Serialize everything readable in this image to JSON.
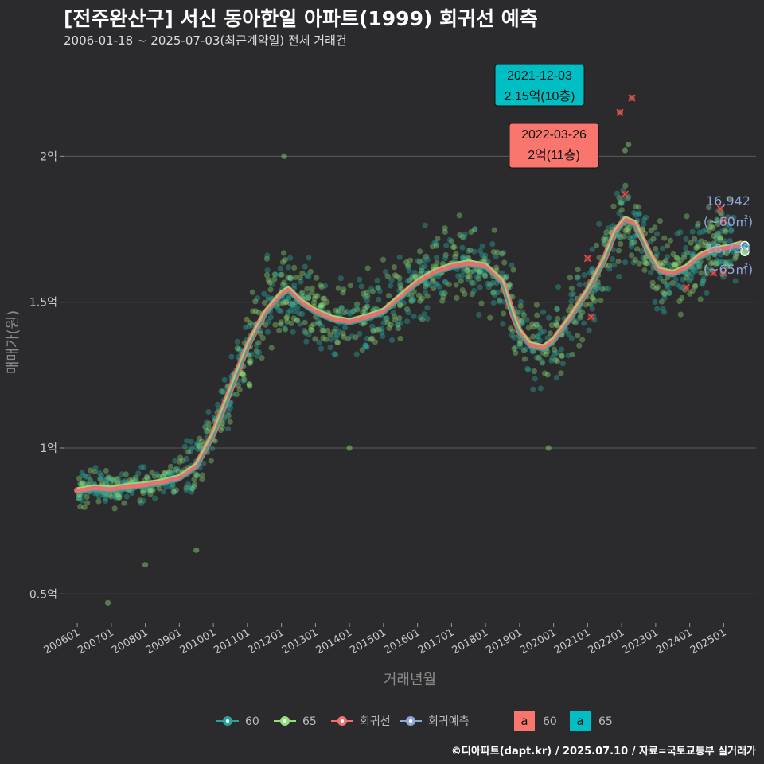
{
  "header": {
    "title": "[전주완산구] 서신 동아한일 아파트(1999) 회귀선 예측",
    "subtitle": "2006-01-18 ~ 2025-07-03(최근계약일) 전체 거래건"
  },
  "footer": "©디아파트(dapt.kr) / 2025.07.10 / 자료=국토교통부 실거래가",
  "colors": {
    "background": "#2b2a2c",
    "grid": "#5b5b5d",
    "s60": "#2aa49a",
    "s65": "#8fe07a",
    "regression": "#f07070",
    "forecast": "#8ea6d8",
    "label60": "#f8766d",
    "label65": "#00bfc4"
  },
  "chart_data": {
    "type": "scatter",
    "xlabel": "거래년월",
    "ylabel": "매매가(원)",
    "x_ticks": [
      "200601",
      "200701",
      "200801",
      "200901",
      "201001",
      "201101",
      "201201",
      "201301",
      "201401",
      "201501",
      "201601",
      "201701",
      "201801",
      "201901",
      "202001",
      "202101",
      "202201",
      "202301",
      "202401",
      "202501"
    ],
    "y_ticks": [
      {
        "value": 0.5,
        "label": "0.5억"
      },
      {
        "value": 1.0,
        "label": "1억"
      },
      {
        "value": 1.5,
        "label": "1.5억"
      },
      {
        "value": 2.0,
        "label": "2억"
      }
    ],
    "ylim": [
      0.4,
      2.35
    ],
    "xlim": [
      2005.6,
      2025.95
    ],
    "unit": "억원",
    "regression": {
      "name": "회귀선",
      "points": [
        [
          2006.0,
          0.855
        ],
        [
          2006.5,
          0.865
        ],
        [
          2007.0,
          0.86
        ],
        [
          2007.5,
          0.87
        ],
        [
          2008.0,
          0.875
        ],
        [
          2008.5,
          0.885
        ],
        [
          2009.0,
          0.9
        ],
        [
          2009.5,
          0.94
        ],
        [
          2010.0,
          1.05
        ],
        [
          2010.5,
          1.2
        ],
        [
          2011.0,
          1.35
        ],
        [
          2011.5,
          1.46
        ],
        [
          2012.0,
          1.53
        ],
        [
          2012.2,
          1.545
        ],
        [
          2012.6,
          1.5
        ],
        [
          2013.0,
          1.47
        ],
        [
          2013.5,
          1.445
        ],
        [
          2014.0,
          1.435
        ],
        [
          2014.5,
          1.45
        ],
        [
          2015.0,
          1.47
        ],
        [
          2015.5,
          1.52
        ],
        [
          2016.0,
          1.57
        ],
        [
          2016.5,
          1.605
        ],
        [
          2017.0,
          1.625
        ],
        [
          2017.5,
          1.635
        ],
        [
          2018.0,
          1.625
        ],
        [
          2018.5,
          1.57
        ],
        [
          2018.8,
          1.46
        ],
        [
          2019.0,
          1.4
        ],
        [
          2019.3,
          1.355
        ],
        [
          2019.7,
          1.345
        ],
        [
          2020.0,
          1.37
        ],
        [
          2020.5,
          1.45
        ],
        [
          2021.0,
          1.54
        ],
        [
          2021.5,
          1.65
        ],
        [
          2021.8,
          1.74
        ],
        [
          2022.1,
          1.785
        ],
        [
          2022.4,
          1.77
        ],
        [
          2022.8,
          1.67
        ],
        [
          2023.1,
          1.61
        ],
        [
          2023.5,
          1.6
        ],
        [
          2023.9,
          1.62
        ],
        [
          2024.3,
          1.66
        ],
        [
          2024.7,
          1.68
        ],
        [
          2025.2,
          1.69
        ],
        [
          2025.5,
          1.7
        ]
      ]
    },
    "series": [
      {
        "name": "60",
        "color": "#2aa49a",
        "end_label": "16,942",
        "end_area": "(~60㎡)",
        "end_value": 1.6942
      },
      {
        "name": "65",
        "color": "#8fe07a",
        "end_label": "16,730",
        "end_area": "(~65㎡)",
        "end_value": 1.673
      }
    ],
    "legend": {
      "items": [
        {
          "label": "60",
          "color": "#2aa49a"
        },
        {
          "label": "65",
          "color": "#8fe07a"
        },
        {
          "label": "회귀선",
          "color": "#f07070"
        },
        {
          "label": "회귀예측",
          "color": "#8ea6d8"
        }
      ],
      "label_items": [
        {
          "letter": "a",
          "label": "60",
          "color": "#f8766d"
        },
        {
          "letter": "a",
          "label": "65",
          "color": "#00bfc4"
        }
      ],
      "position": "bottom"
    },
    "annotations": [
      {
        "date": "2021-12-03",
        "price_text": "2.15억(10층)",
        "x": 2021.92,
        "y": 2.15,
        "color": "#00bfc4"
      },
      {
        "date": "2022-03-26",
        "price_text": "2억(11층)",
        "x": 2022.23,
        "y": 2.0,
        "color": "#f8766d"
      }
    ],
    "outliers": [
      [
        2012.08,
        2.0
      ],
      [
        2006.9,
        0.47
      ],
      [
        2008.0,
        0.6
      ],
      [
        2009.5,
        0.65
      ],
      [
        2019.85,
        1.0
      ],
      [
        2014.0,
        1.0
      ],
      [
        2022.2,
        2.04
      ],
      [
        2022.1,
        2.02
      ],
      [
        2021.95,
        2.15
      ],
      [
        2022.3,
        2.2
      ]
    ]
  }
}
